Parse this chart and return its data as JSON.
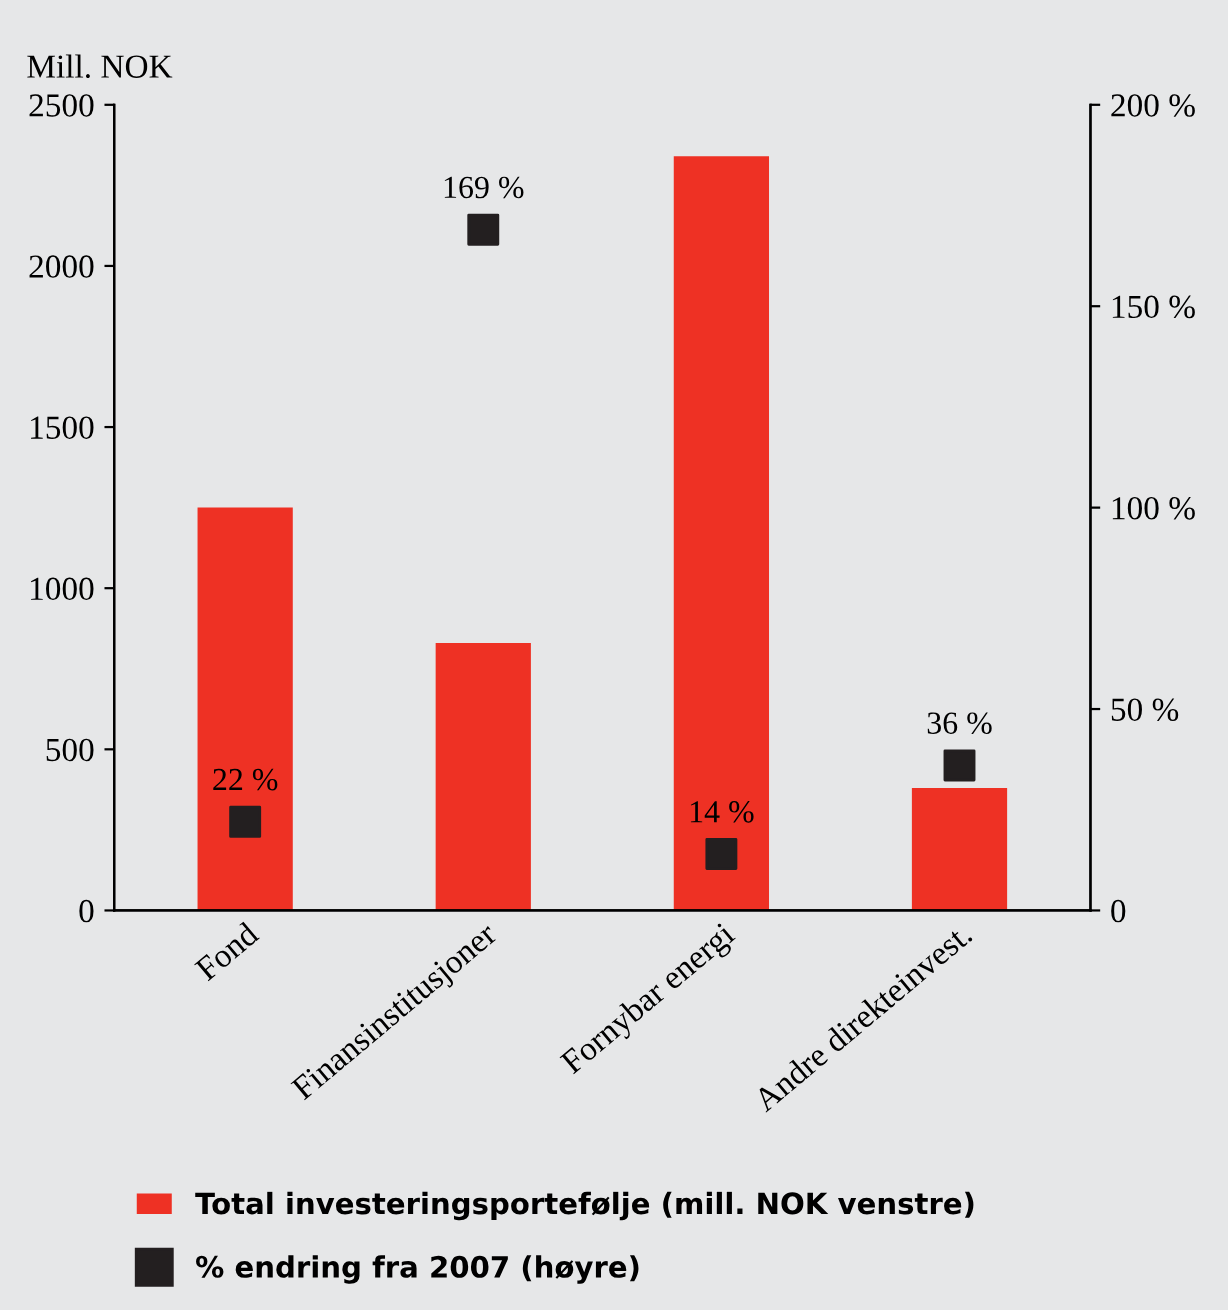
{
  "chart_data": {
    "type": "bar",
    "ylabel": "Mill. NOK",
    "categories": [
      "Fond",
      "Finansinstitusjoner",
      "Fornybar energi",
      "Andre direkteinvest."
    ],
    "series": [
      {
        "name": "Total investeringsportefølje (mill. NOK venstre)",
        "color": "#ee3124",
        "values": [
          1250,
          830,
          2340,
          380
        ]
      },
      {
        "name": "% endring fra 2007 (høyre)",
        "type": "scatter",
        "axis": "y2",
        "color": "#231f20",
        "marker": "square",
        "values": [
          22,
          169,
          14,
          36
        ],
        "value_labels": [
          "22 %",
          "169 %",
          "14 %",
          "36 %"
        ]
      }
    ],
    "ylim": [
      0,
      2500
    ],
    "yticks": [
      0,
      500,
      1000,
      1500,
      2000,
      2500
    ],
    "y2lim": [
      0,
      200
    ],
    "y2ticks": [
      0,
      {
        "value": 50,
        "label": "50 %"
      },
      {
        "value": 100,
        "label": "100 %"
      },
      {
        "value": 150,
        "label": "150 %"
      },
      {
        "value": 200,
        "label": "200 %"
      }
    ],
    "grid": false,
    "legend": "bottom"
  }
}
